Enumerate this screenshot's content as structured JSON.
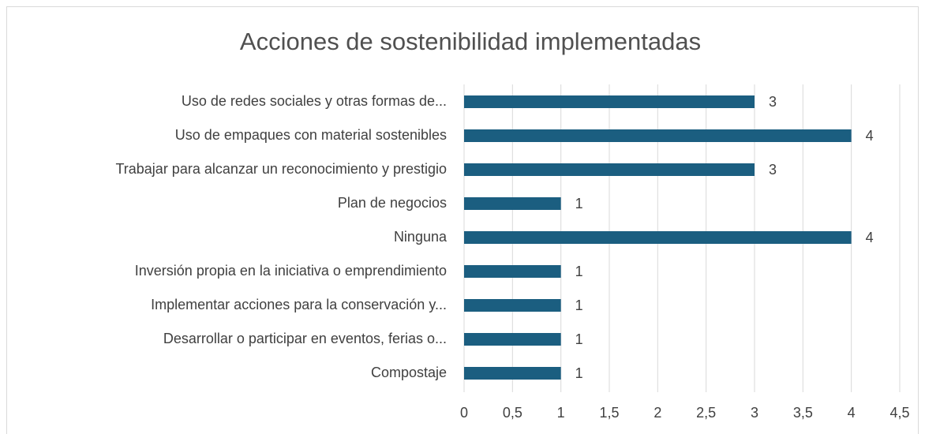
{
  "chart_data": {
    "type": "bar",
    "orientation": "horizontal",
    "title": "Acciones de sostenibilidad implementadas",
    "categories": [
      "Uso de redes sociales y otras formas de...",
      "Uso de empaques con material sostenibles",
      "Trabajar para alcanzar un reconocimiento y prestigio",
      "Plan de negocios",
      "Ninguna",
      "Inversión propia en la iniciativa o emprendimiento",
      "Implementar acciones para la conservación y...",
      "Desarrollar o participar en eventos, ferias o...",
      "Compostaje"
    ],
    "values": [
      3,
      4,
      3,
      1,
      4,
      1,
      1,
      1,
      1
    ],
    "color": "#1b5e80",
    "xlim": [
      0,
      4.5
    ],
    "xticks": [
      0,
      {
        "value": 0.5,
        "label": "0,5"
      },
      1,
      {
        "value": 1.5,
        "label": "1,5"
      },
      2,
      {
        "value": 2.5,
        "label": "2,5"
      },
      3,
      {
        "value": 3.5,
        "label": "3,5"
      },
      4,
      {
        "value": 4.5,
        "label": "4,5"
      }
    ],
    "grid": true
  }
}
